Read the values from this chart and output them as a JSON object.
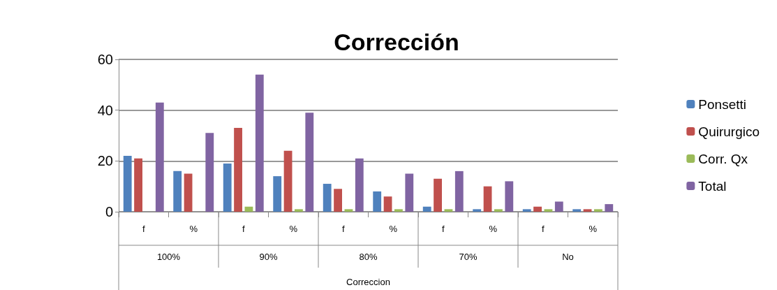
{
  "chart_data": {
    "type": "bar",
    "title": "Corrección",
    "categories": [
      "f",
      "%",
      "f",
      "%",
      "f",
      "%",
      "f",
      "%",
      "f",
      "%"
    ],
    "annotations": [
      "100%",
      "90%",
      "80%",
      "70%",
      "No",
      "Correccion"
    ],
    "series": [
      {
        "name": "Ponsetti",
        "color": "#4f81bd",
        "values": [
          22,
          16,
          19,
          14,
          11,
          8,
          2,
          1,
          1,
          1
        ]
      },
      {
        "name": "Quirurgico",
        "color": "#c0504d",
        "values": [
          21,
          15,
          33,
          24,
          9,
          6,
          13,
          10,
          2,
          1
        ]
      },
      {
        "name": "Corr. Qx",
        "color": "#9bbb59",
        "values": [
          0,
          0,
          2,
          1,
          1,
          1,
          1,
          1,
          1,
          1
        ]
      },
      {
        "name": "Total",
        "color": "#8064a2",
        "values": [
          43,
          31,
          54,
          39,
          21,
          15,
          16,
          12,
          4,
          3
        ]
      }
    ],
    "ylim": [
      0,
      60
    ],
    "yticks": [
      0,
      20,
      40,
      60
    ],
    "grid": "y",
    "legend": "right"
  }
}
